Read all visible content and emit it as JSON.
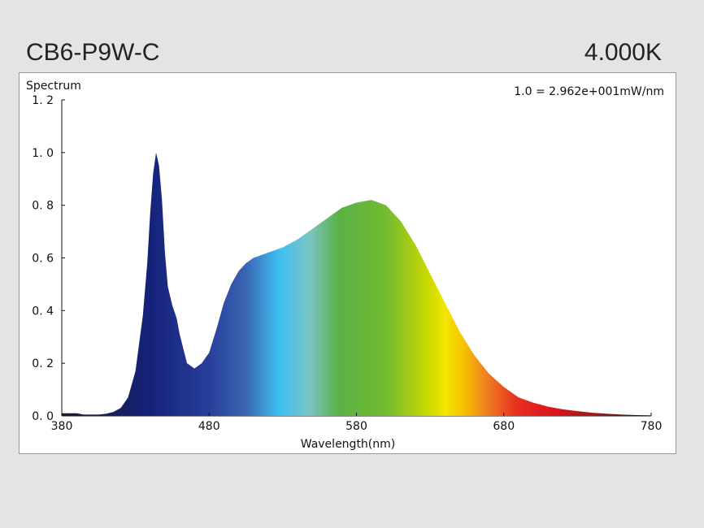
{
  "header": {
    "model": "CB6-P9W-C",
    "cct": "4.000K"
  },
  "chart_data": {
    "type": "area",
    "title": "",
    "ylabel": "Spectrum",
    "xlabel": "Wavelength(nm)",
    "scale_note": "1.0 =  2.962e+001mW/nm",
    "xlim": [
      380,
      780
    ],
    "ylim": [
      0,
      1.2
    ],
    "x_ticks": [
      380,
      480,
      580,
      680,
      780
    ],
    "x_tick_labels": [
      "380",
      "480",
      "580",
      "680",
      "780"
    ],
    "y_ticks": [
      0,
      0.2,
      0.4,
      0.6,
      0.8,
      1.0,
      1.2
    ],
    "y_tick_labels": [
      "0. 0",
      "0. 2",
      "0. 4",
      "0. 6",
      "0. 8",
      "1. 0",
      "1. 2"
    ],
    "grid": false,
    "series": [
      {
        "x": [
          380,
          385,
          390,
          395,
          400,
          405,
          410,
          415,
          420,
          425,
          430,
          435,
          438,
          440,
          442,
          444,
          446,
          448,
          450,
          452,
          455,
          458,
          460,
          465,
          470,
          475,
          480,
          485,
          490,
          495,
          500,
          505,
          510,
          515,
          520,
          525,
          530,
          540,
          550,
          560,
          570,
          580,
          590,
          595,
          600,
          610,
          620,
          630,
          640,
          650,
          660,
          670,
          680,
          690,
          700,
          710,
          720,
          730,
          740,
          750,
          760,
          770,
          780
        ],
        "values": [
          0.01,
          0.01,
          0.01,
          0.005,
          0.005,
          0.005,
          0.008,
          0.015,
          0.03,
          0.07,
          0.17,
          0.38,
          0.58,
          0.77,
          0.92,
          1.0,
          0.95,
          0.82,
          0.62,
          0.49,
          0.42,
          0.37,
          0.31,
          0.2,
          0.18,
          0.2,
          0.24,
          0.33,
          0.43,
          0.5,
          0.55,
          0.58,
          0.6,
          0.61,
          0.62,
          0.63,
          0.64,
          0.67,
          0.71,
          0.75,
          0.79,
          0.81,
          0.82,
          0.81,
          0.8,
          0.74,
          0.65,
          0.54,
          0.43,
          0.32,
          0.23,
          0.16,
          0.11,
          0.07,
          0.05,
          0.035,
          0.025,
          0.018,
          0.012,
          0.008,
          0.005,
          0.003,
          0.002
        ]
      }
    ]
  }
}
